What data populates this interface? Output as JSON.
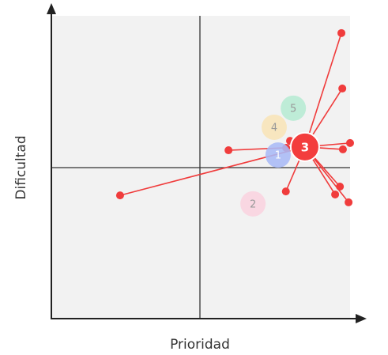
{
  "chart_data": {
    "type": "scatter",
    "x_label": "Prioridad",
    "y_label": "Dificultad",
    "xlim": [
      0,
      10
    ],
    "ylim": [
      0,
      10
    ],
    "bubbles": {
      "labels": [
        "1",
        "2",
        "3",
        "4",
        "5"
      ],
      "x": [
        7.59,
        6.75,
        8.49,
        7.46,
        8.1
      ],
      "y": [
        5.4,
        3.79,
        5.67,
        6.32,
        6.95
      ],
      "sizes": [
        16,
        16,
        18,
        16,
        16
      ],
      "colors": [
        "#a9b9f6",
        "#f9d3df",
        "#f33d3d",
        "#f8e4b7",
        "#b6ebd3"
      ]
    },
    "points": {
      "color": "#f03c3c",
      "x": [
        9.71,
        9.74,
        5.93,
        2.3,
        7.99,
        7.86,
        10.0,
        9.76,
        7.85,
        9.66,
        9.5,
        9.95
      ],
      "y": [
        9.43,
        7.6,
        5.56,
        4.07,
        5.87,
        5.64,
        5.8,
        5.59,
        4.2,
        4.36,
        4.1,
        3.84
      ]
    }
  }
}
